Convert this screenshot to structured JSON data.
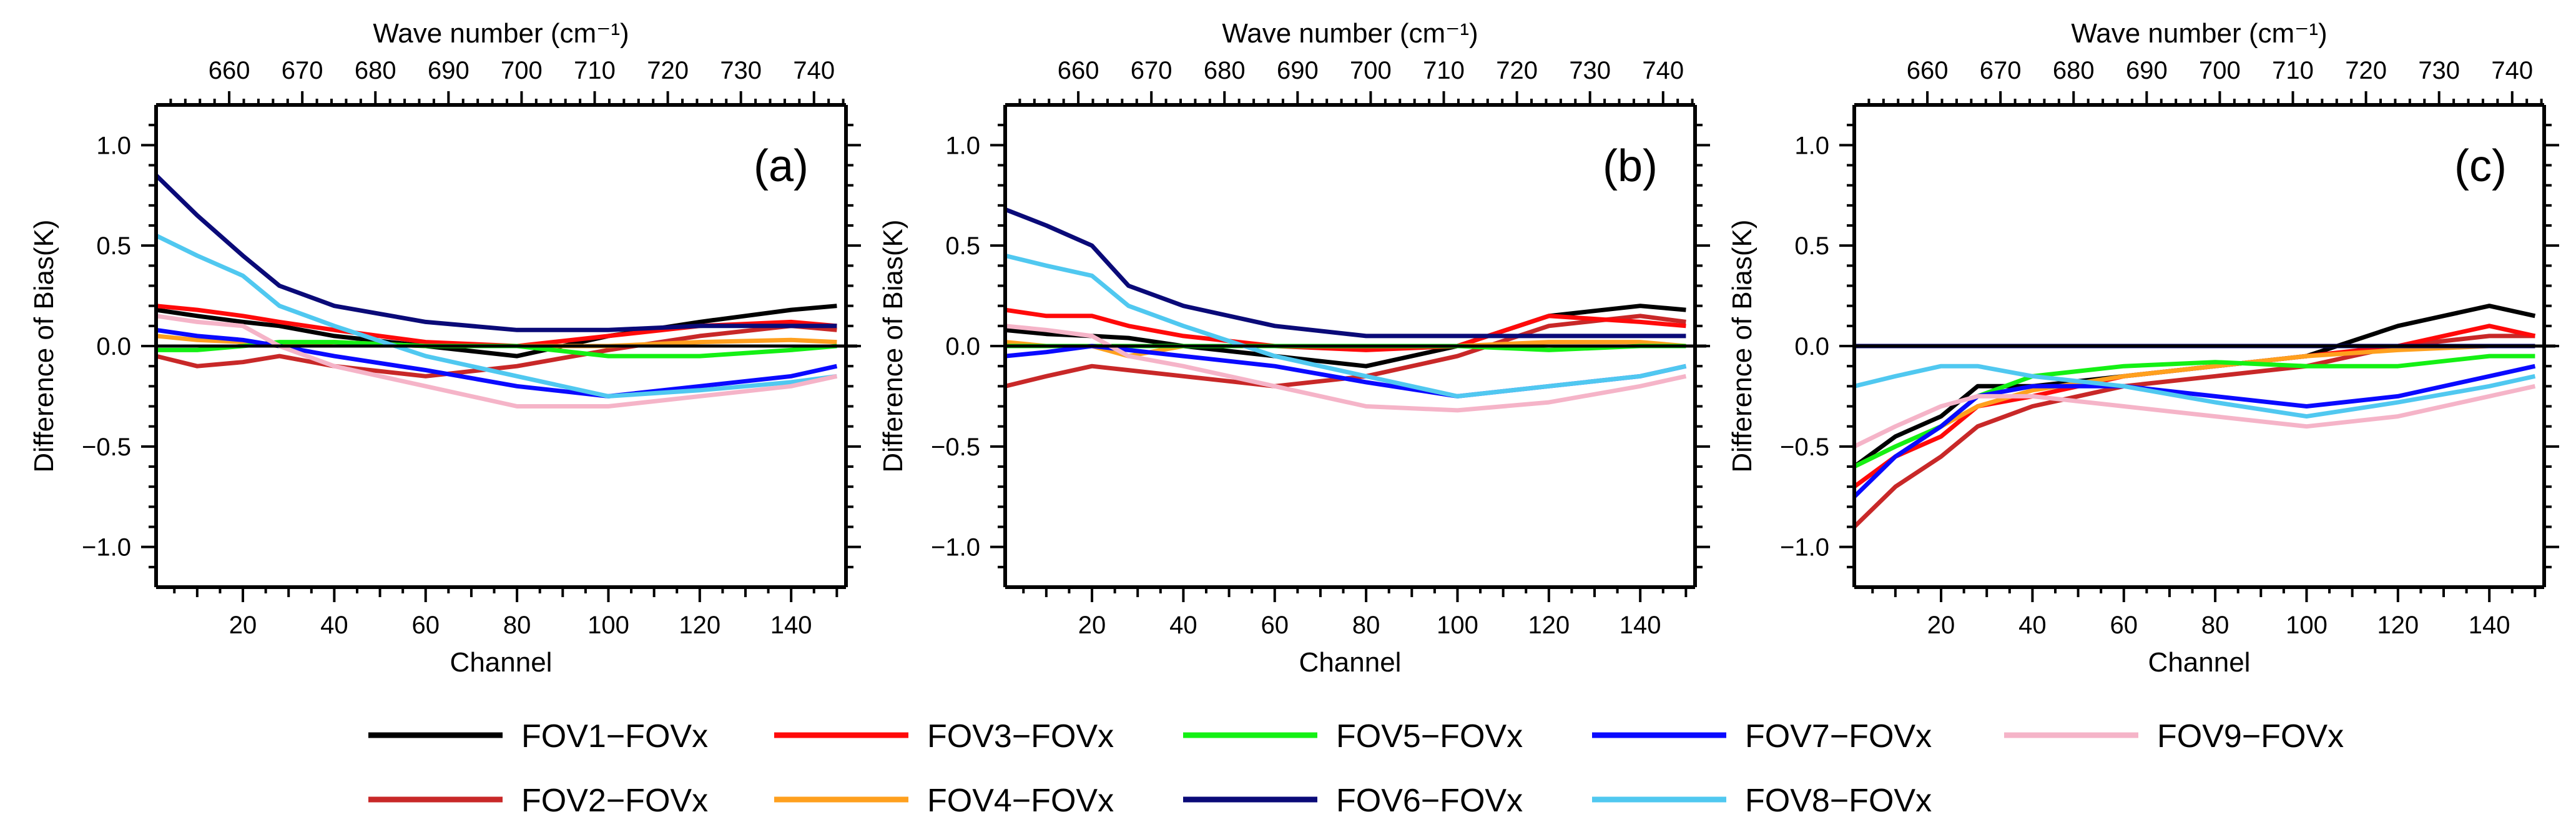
{
  "chart_data": {
    "type": "line",
    "x_axis": {
      "label": "Channel",
      "range": [
        1,
        152
      ],
      "ticks": [
        20,
        40,
        60,
        80,
        100,
        120,
        140
      ]
    },
    "y_axis": {
      "label": "Difference of Bias(K)",
      "range": [
        -1.2,
        1.2
      ],
      "ticks": [
        -1.0,
        -0.5,
        0.0,
        0.5,
        1.0
      ],
      "tick_labels": [
        "−1.0",
        "−0.5",
        "0.0",
        "0.5",
        "1.0"
      ]
    },
    "top_axis": {
      "label": "Wave number (cm⁻¹)",
      "range": [
        650.0,
        744.375
      ],
      "ticks": [
        660,
        670,
        680,
        690,
        700,
        710,
        720,
        730,
        740
      ]
    },
    "legend_position": "bottom",
    "series": [
      {
        "name": "FOV1−FOVx",
        "color": "#000000",
        "panels": [
          {
            "panel": "a",
            "x": [
              1,
              10,
              20,
              28,
              40,
              60,
              80,
              100,
              120,
              140,
              150
            ],
            "y": [
              0.18,
              0.15,
              0.12,
              0.1,
              0.05,
              0.0,
              -0.05,
              0.05,
              0.12,
              0.18,
              0.2
            ]
          },
          {
            "panel": "b",
            "x": [
              1,
              10,
              20,
              28,
              40,
              60,
              80,
              100,
              120,
              140,
              150
            ],
            "y": [
              0.08,
              0.06,
              0.05,
              0.04,
              0.0,
              -0.05,
              -0.1,
              0.0,
              0.15,
              0.2,
              0.18
            ]
          },
          {
            "panel": "c",
            "x": [
              1,
              10,
              20,
              28,
              40,
              60,
              80,
              100,
              120,
              140,
              150
            ],
            "y": [
              -0.6,
              -0.45,
              -0.35,
              -0.2,
              -0.2,
              -0.15,
              -0.1,
              -0.05,
              0.1,
              0.2,
              0.15
            ]
          }
        ]
      },
      {
        "name": "FOV2−FOVx",
        "color": "#c82828",
        "panels": [
          {
            "panel": "a",
            "x": [
              1,
              10,
              20,
              28,
              40,
              60,
              80,
              100,
              120,
              140,
              150
            ],
            "y": [
              -0.05,
              -0.1,
              -0.08,
              -0.05,
              -0.1,
              -0.15,
              -0.1,
              -0.02,
              0.05,
              0.1,
              0.08
            ]
          },
          {
            "panel": "b",
            "x": [
              1,
              10,
              20,
              28,
              40,
              60,
              80,
              100,
              120,
              140,
              150
            ],
            "y": [
              -0.2,
              -0.15,
              -0.1,
              -0.12,
              -0.15,
              -0.2,
              -0.15,
              -0.05,
              0.1,
              0.15,
              0.12
            ]
          },
          {
            "panel": "c",
            "x": [
              1,
              10,
              20,
              28,
              40,
              60,
              80,
              100,
              120,
              140,
              150
            ],
            "y": [
              -0.9,
              -0.7,
              -0.55,
              -0.4,
              -0.3,
              -0.2,
              -0.15,
              -0.1,
              0.0,
              0.05,
              0.05
            ]
          }
        ]
      },
      {
        "name": "FOV3−FOVx",
        "color": "#ff0a0a",
        "panels": [
          {
            "panel": "a",
            "x": [
              1,
              10,
              20,
              28,
              40,
              60,
              80,
              100,
              120,
              140,
              150
            ],
            "y": [
              0.2,
              0.18,
              0.15,
              0.12,
              0.08,
              0.02,
              0.0,
              0.05,
              0.1,
              0.12,
              0.1
            ]
          },
          {
            "panel": "b",
            "x": [
              1,
              10,
              20,
              28,
              40,
              60,
              80,
              100,
              120,
              140,
              150
            ],
            "y": [
              0.18,
              0.15,
              0.15,
              0.1,
              0.05,
              0.0,
              -0.02,
              0.0,
              0.15,
              0.12,
              0.1
            ]
          },
          {
            "panel": "c",
            "x": [
              1,
              10,
              20,
              28,
              40,
              60,
              80,
              100,
              120,
              140,
              150
            ],
            "y": [
              -0.7,
              -0.55,
              -0.45,
              -0.3,
              -0.25,
              -0.15,
              -0.1,
              -0.05,
              0.0,
              0.1,
              0.05
            ]
          }
        ]
      },
      {
        "name": "FOV4−FOVx",
        "color": "#ffa01e",
        "panels": [
          {
            "panel": "a",
            "x": [
              1,
              10,
              20,
              28,
              40,
              60,
              80,
              100,
              120,
              140,
              150
            ],
            "y": [
              0.05,
              0.03,
              0.02,
              0.0,
              0.02,
              0.0,
              0.0,
              0.0,
              0.02,
              0.03,
              0.02
            ]
          },
          {
            "panel": "b",
            "x": [
              1,
              10,
              20,
              28,
              40,
              60,
              80,
              100,
              120,
              140,
              150
            ],
            "y": [
              0.02,
              0.0,
              0.0,
              -0.05,
              0.0,
              0.0,
              0.0,
              0.0,
              0.02,
              0.02,
              0.0
            ]
          },
          {
            "panel": "c",
            "x": [
              1,
              10,
              20,
              28,
              40,
              60,
              80,
              100,
              120,
              140,
              150
            ],
            "y": [
              -0.6,
              -0.5,
              -0.4,
              -0.3,
              -0.22,
              -0.15,
              -0.1,
              -0.05,
              -0.02,
              0.0,
              0.0
            ]
          }
        ]
      },
      {
        "name": "FOV5−FOVx",
        "color": "#14f014",
        "panels": [
          {
            "panel": "a",
            "x": [
              1,
              10,
              20,
              28,
              40,
              60,
              80,
              100,
              120,
              140,
              150
            ],
            "y": [
              -0.02,
              -0.02,
              0.0,
              0.02,
              0.02,
              0.0,
              0.0,
              -0.05,
              -0.05,
              -0.02,
              0.0
            ]
          },
          {
            "panel": "b",
            "x": [
              1,
              10,
              20,
              28,
              40,
              60,
              80,
              100,
              120,
              140,
              150
            ],
            "y": [
              0.0,
              0.0,
              0.0,
              0.0,
              0.0,
              0.0,
              0.0,
              0.0,
              -0.02,
              0.0,
              0.0
            ]
          },
          {
            "panel": "c",
            "x": [
              1,
              10,
              20,
              28,
              40,
              60,
              80,
              100,
              120,
              140,
              150
            ],
            "y": [
              -0.6,
              -0.5,
              -0.4,
              -0.25,
              -0.15,
              -0.1,
              -0.08,
              -0.1,
              -0.1,
              -0.05,
              -0.05
            ]
          }
        ]
      },
      {
        "name": "FOV6−FOVx",
        "color": "#0a0a78",
        "panels": [
          {
            "panel": "a",
            "x": [
              1,
              10,
              20,
              28,
              40,
              60,
              80,
              100,
              120,
              140,
              150
            ],
            "y": [
              0.85,
              0.65,
              0.45,
              0.3,
              0.2,
              0.12,
              0.08,
              0.08,
              0.1,
              0.1,
              0.1
            ]
          },
          {
            "panel": "b",
            "x": [
              1,
              10,
              20,
              28,
              40,
              60,
              80,
              100,
              120,
              140,
              150
            ],
            "y": [
              0.68,
              0.6,
              0.5,
              0.3,
              0.2,
              0.1,
              0.05,
              0.05,
              0.05,
              0.05,
              0.05
            ]
          },
          {
            "panel": "c",
            "x": [
              1,
              10,
              20,
              28,
              40,
              60,
              80,
              100,
              120,
              140,
              150
            ],
            "y": [
              0.0,
              0.0,
              0.0,
              0.0,
              0.0,
              0.0,
              0.0,
              0.0,
              0.0,
              0.0,
              0.0
            ]
          }
        ]
      },
      {
        "name": "FOV7−FOVx",
        "color": "#0a0aff",
        "panels": [
          {
            "panel": "a",
            "x": [
              1,
              10,
              20,
              28,
              40,
              60,
              80,
              100,
              120,
              140,
              150
            ],
            "y": [
              0.08,
              0.05,
              0.03,
              0.0,
              -0.05,
              -0.12,
              -0.2,
              -0.25,
              -0.2,
              -0.15,
              -0.1
            ]
          },
          {
            "panel": "b",
            "x": [
              1,
              10,
              20,
              28,
              40,
              60,
              80,
              100,
              120,
              140,
              150
            ],
            "y": [
              -0.05,
              -0.03,
              0.0,
              -0.02,
              -0.05,
              -0.1,
              -0.18,
              -0.25,
              -0.2,
              -0.15,
              -0.1
            ]
          },
          {
            "panel": "c",
            "x": [
              1,
              10,
              20,
              28,
              40,
              60,
              80,
              100,
              120,
              140,
              150
            ],
            "y": [
              -0.75,
              -0.55,
              -0.4,
              -0.25,
              -0.2,
              -0.2,
              -0.25,
              -0.3,
              -0.25,
              -0.15,
              -0.1
            ]
          }
        ]
      },
      {
        "name": "FOV8−FOVx",
        "color": "#50c8f0",
        "panels": [
          {
            "panel": "a",
            "x": [
              1,
              10,
              20,
              28,
              40,
              60,
              80,
              100,
              120,
              140,
              150
            ],
            "y": [
              0.55,
              0.45,
              0.35,
              0.2,
              0.1,
              -0.05,
              -0.15,
              -0.25,
              -0.22,
              -0.18,
              -0.15
            ]
          },
          {
            "panel": "b",
            "x": [
              1,
              10,
              20,
              28,
              40,
              60,
              80,
              100,
              120,
              140,
              150
            ],
            "y": [
              0.45,
              0.4,
              0.35,
              0.2,
              0.1,
              -0.05,
              -0.15,
              -0.25,
              -0.2,
              -0.15,
              -0.1
            ]
          },
          {
            "panel": "c",
            "x": [
              1,
              10,
              20,
              28,
              40,
              60,
              80,
              100,
              120,
              140,
              150
            ],
            "y": [
              -0.2,
              -0.15,
              -0.1,
              -0.1,
              -0.15,
              -0.2,
              -0.28,
              -0.35,
              -0.28,
              -0.2,
              -0.15
            ]
          }
        ]
      },
      {
        "name": "FOV9−FOVx",
        "color": "#f5b4c8",
        "panels": [
          {
            "panel": "a",
            "x": [
              1,
              10,
              20,
              28,
              40,
              60,
              80,
              100,
              120,
              140,
              150
            ],
            "y": [
              0.15,
              0.12,
              0.1,
              0.0,
              -0.1,
              -0.2,
              -0.3,
              -0.3,
              -0.25,
              -0.2,
              -0.15
            ]
          },
          {
            "panel": "b",
            "x": [
              1,
              10,
              20,
              28,
              40,
              60,
              80,
              100,
              120,
              140,
              150
            ],
            "y": [
              0.1,
              0.08,
              0.05,
              -0.05,
              -0.1,
              -0.2,
              -0.3,
              -0.32,
              -0.28,
              -0.2,
              -0.15
            ]
          },
          {
            "panel": "c",
            "x": [
              1,
              10,
              20,
              28,
              40,
              60,
              80,
              100,
              120,
              140,
              150
            ],
            "y": [
              -0.5,
              -0.4,
              -0.3,
              -0.25,
              -0.25,
              -0.3,
              -0.35,
              -0.4,
              -0.35,
              -0.25,
              -0.2
            ]
          }
        ]
      }
    ],
    "panels": [
      {
        "id": "a",
        "label": "(a)"
      },
      {
        "id": "b",
        "label": "(b)"
      },
      {
        "id": "c",
        "label": "(c)"
      }
    ]
  }
}
